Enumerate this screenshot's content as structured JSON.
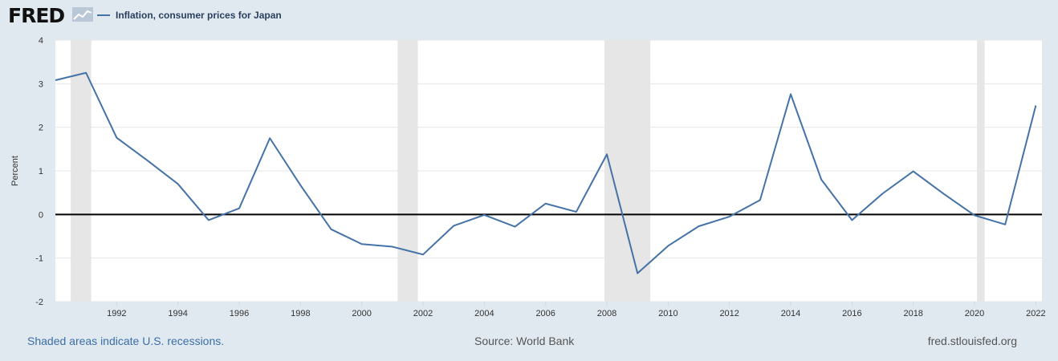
{
  "header": {
    "logo_text": "FRED"
  },
  "footer": {
    "recessions_note": "Shaded areas indicate U.S. recessions.",
    "source": "Source: World Bank",
    "site": "fred.stlouisfed.org"
  },
  "colors": {
    "line": "#4572a7",
    "recession": "#e6e6e6",
    "background": "#e1e9f0",
    "plot": "#ffffff",
    "zero_line": "#000000"
  },
  "chart_data": {
    "type": "line",
    "title": "",
    "xlabel": "",
    "ylabel": "Percent",
    "xlim": [
      1990,
      2022.2
    ],
    "ylim": [
      -2,
      4
    ],
    "yticks": [
      -2,
      -1,
      0,
      1,
      2,
      3,
      4
    ],
    "xticks": [
      1992,
      1994,
      1996,
      1998,
      2000,
      2002,
      2004,
      2006,
      2008,
      2010,
      2012,
      2014,
      2016,
      2018,
      2020,
      2022
    ],
    "grid": true,
    "legend": "top-left",
    "recessions": [
      [
        1990.5,
        1991.17
      ],
      [
        2001.17,
        2001.83
      ],
      [
        2007.92,
        2009.42
      ],
      [
        2020.08,
        2020.33
      ]
    ],
    "series": [
      {
        "name": "Inflation, consumer prices for Japan",
        "x": [
          1990,
          1991,
          1992,
          1993,
          1994,
          1995,
          1996,
          1997,
          1998,
          1999,
          2000,
          2001,
          2002,
          2003,
          2004,
          2005,
          2006,
          2007,
          2008,
          2009,
          2010,
          2011,
          2012,
          2013,
          2014,
          2015,
          2016,
          2017,
          2018,
          2019,
          2020,
          2021,
          2022
        ],
        "values": [
          3.08,
          3.25,
          1.76,
          1.24,
          0.7,
          -0.13,
          0.14,
          1.75,
          0.67,
          -0.34,
          -0.68,
          -0.74,
          -0.92,
          -0.26,
          -0.01,
          -0.28,
          0.25,
          0.06,
          1.38,
          -1.35,
          -0.72,
          -0.27,
          -0.05,
          0.33,
          2.76,
          0.8,
          -0.13,
          0.48,
          0.99,
          0.47,
          -0.02,
          -0.23,
          2.5
        ]
      }
    ]
  }
}
